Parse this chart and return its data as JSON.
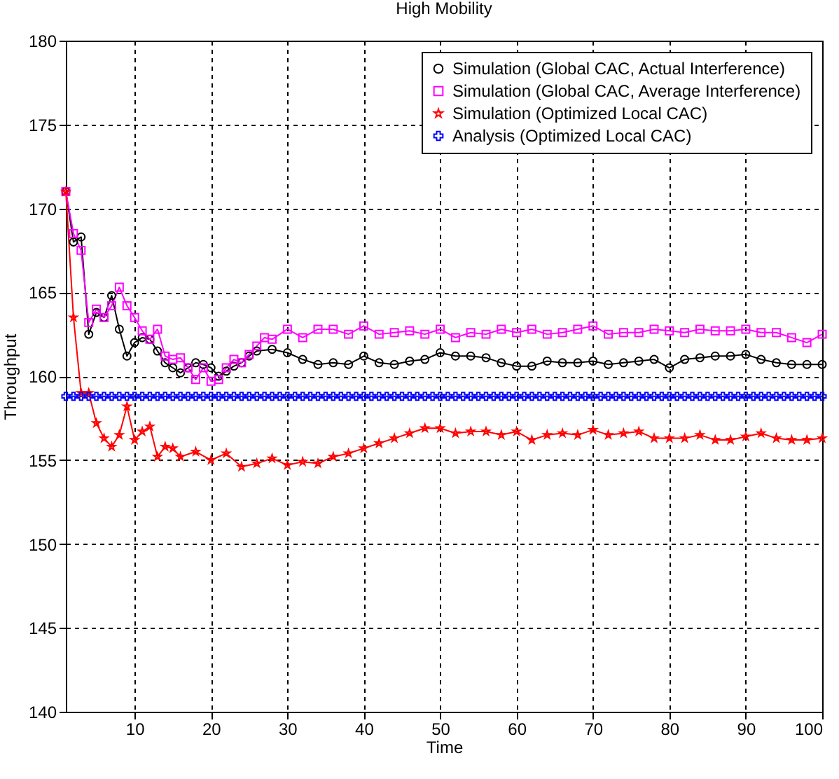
{
  "chart_data": {
    "type": "line",
    "title": "High Mobility",
    "xlabel": "Time",
    "ylabel": "Throughput",
    "xlim": [
      1,
      100
    ],
    "xticks": [
      10,
      20,
      30,
      40,
      50,
      60,
      70,
      80,
      90,
      100
    ],
    "ylim": [
      140,
      180
    ],
    "yticks": [
      140,
      145,
      150,
      155,
      160,
      165,
      170,
      175,
      180
    ],
    "grid": true,
    "legend": "top right",
    "line_style": "solid",
    "series": [
      {
        "name": "Simulation (Global CAC, Actual Interference)",
        "color": "#000000",
        "marker": "circle",
        "x": [
          1,
          2,
          3,
          4,
          5,
          6,
          7,
          8,
          9,
          10,
          11,
          12,
          13,
          14,
          15,
          16,
          17,
          18,
          19,
          20,
          21,
          22,
          23,
          24,
          25,
          26,
          28,
          30,
          32,
          34,
          36,
          38,
          40,
          42,
          44,
          46,
          48,
          50,
          52,
          54,
          56,
          58,
          60,
          62,
          64,
          66,
          68,
          70,
          72,
          74,
          76,
          78,
          80,
          82,
          84,
          86,
          88,
          90,
          92,
          94,
          96,
          98,
          100
        ],
        "values": [
          171,
          168,
          168.3,
          162.5,
          163.8,
          163.5,
          164.8,
          162.8,
          161.2,
          162,
          162.3,
          162.2,
          161.5,
          160.8,
          160.5,
          160.2,
          160.5,
          160.8,
          160.7,
          160.5,
          160,
          160.3,
          160.6,
          160.8,
          161.2,
          161.5,
          161.6,
          161.4,
          161,
          160.7,
          160.8,
          160.7,
          161.2,
          160.8,
          160.7,
          160.9,
          161,
          161.4,
          161.2,
          161.2,
          161.1,
          160.8,
          160.6,
          160.6,
          160.9,
          160.8,
          160.8,
          160.9,
          160.7,
          160.8,
          160.9,
          161,
          160.5,
          161,
          161.1,
          161.2,
          161.2,
          161.3,
          161,
          160.8,
          160.7,
          160.7,
          160.7
        ]
      },
      {
        "name": "Simulation (Global CAC, Average Interference)",
        "color": "#ff00ff",
        "marker": "square",
        "x": [
          1,
          2,
          3,
          4,
          5,
          6,
          7,
          8,
          9,
          10,
          11,
          12,
          13,
          14,
          15,
          16,
          17,
          18,
          19,
          20,
          21,
          22,
          23,
          24,
          25,
          26,
          27,
          28,
          30,
          32,
          34,
          36,
          38,
          40,
          42,
          44,
          46,
          48,
          50,
          52,
          54,
          56,
          58,
          60,
          62,
          64,
          66,
          68,
          70,
          72,
          74,
          76,
          78,
          80,
          82,
          84,
          86,
          88,
          90,
          92,
          94,
          96,
          98,
          100
        ],
        "values": [
          171,
          168.5,
          167.5,
          163.2,
          164,
          163.5,
          164.2,
          165.3,
          164.2,
          163.5,
          162.7,
          162.2,
          162.8,
          161.2,
          161,
          161.1,
          160.5,
          159.8,
          160.5,
          159.7,
          159.8,
          160.5,
          161,
          160.8,
          161.3,
          161.8,
          162.3,
          162.2,
          162.8,
          162.3,
          162.8,
          162.8,
          162.5,
          163,
          162.5,
          162.6,
          162.7,
          162.5,
          162.8,
          162.3,
          162.6,
          162.5,
          162.8,
          162.6,
          162.8,
          162.5,
          162.6,
          162.8,
          163,
          162.5,
          162.6,
          162.6,
          162.8,
          162.7,
          162.6,
          162.8,
          162.7,
          162.7,
          162.8,
          162.6,
          162.6,
          162.3,
          162,
          162.5
        ]
      },
      {
        "name": "Simulation (Optimized Local CAC)",
        "color": "#ff0000",
        "marker": "star",
        "x": [
          1,
          2,
          3,
          4,
          5,
          6,
          7,
          8,
          9,
          10,
          11,
          12,
          13,
          14,
          15,
          16,
          18,
          20,
          22,
          24,
          26,
          28,
          30,
          32,
          34,
          36,
          38,
          40,
          42,
          44,
          46,
          48,
          50,
          52,
          54,
          56,
          58,
          60,
          62,
          64,
          66,
          68,
          70,
          72,
          74,
          76,
          78,
          80,
          82,
          84,
          86,
          88,
          90,
          92,
          94,
          96,
          98,
          100
        ],
        "values": [
          171,
          163.5,
          159,
          159,
          157.2,
          156.3,
          155.8,
          156.5,
          158.2,
          156.2,
          156.7,
          157,
          155.2,
          155.8,
          155.7,
          155.2,
          155.5,
          155,
          155.4,
          154.6,
          154.8,
          155.1,
          154.7,
          154.9,
          154.8,
          155.2,
          155.4,
          155.7,
          156,
          156.3,
          156.6,
          156.9,
          156.9,
          156.6,
          156.7,
          156.7,
          156.5,
          156.7,
          156.2,
          156.5,
          156.6,
          156.5,
          156.8,
          156.5,
          156.6,
          156.7,
          156.3,
          156.3,
          156.3,
          156.5,
          156.2,
          156.2,
          156.4,
          156.6,
          156.3,
          156.2,
          156.2,
          156.3
        ]
      },
      {
        "name": "Analysis (Optimized Local CAC)",
        "color": "#0000ff",
        "marker": "cross",
        "x": [
          1,
          2,
          3,
          4,
          5,
          6,
          7,
          8,
          9,
          10,
          11,
          12,
          13,
          14,
          15,
          16,
          17,
          18,
          19,
          20,
          21,
          22,
          23,
          24,
          25,
          26,
          27,
          28,
          29,
          30,
          31,
          32,
          33,
          34,
          35,
          36,
          37,
          38,
          39,
          40,
          41,
          42,
          43,
          44,
          45,
          46,
          47,
          48,
          49,
          50,
          51,
          52,
          53,
          54,
          55,
          56,
          57,
          58,
          59,
          60,
          61,
          62,
          63,
          64,
          65,
          66,
          67,
          68,
          69,
          70,
          71,
          72,
          73,
          74,
          75,
          76,
          77,
          78,
          79,
          80,
          81,
          82,
          83,
          84,
          85,
          86,
          87,
          88,
          89,
          90,
          91,
          92,
          93,
          94,
          95,
          96,
          97,
          98,
          99,
          100
        ],
        "values": [
          158.8,
          158.8,
          158.8,
          158.8,
          158.8,
          158.8,
          158.8,
          158.8,
          158.8,
          158.8,
          158.8,
          158.8,
          158.8,
          158.8,
          158.8,
          158.8,
          158.8,
          158.8,
          158.8,
          158.8,
          158.8,
          158.8,
          158.8,
          158.8,
          158.8,
          158.8,
          158.8,
          158.8,
          158.8,
          158.8,
          158.8,
          158.8,
          158.8,
          158.8,
          158.8,
          158.8,
          158.8,
          158.8,
          158.8,
          158.8,
          158.8,
          158.8,
          158.8,
          158.8,
          158.8,
          158.8,
          158.8,
          158.8,
          158.8,
          158.8,
          158.8,
          158.8,
          158.8,
          158.8,
          158.8,
          158.8,
          158.8,
          158.8,
          158.8,
          158.8,
          158.8,
          158.8,
          158.8,
          158.8,
          158.8,
          158.8,
          158.8,
          158.8,
          158.8,
          158.8,
          158.8,
          158.8,
          158.8,
          158.8,
          158.8,
          158.8,
          158.8,
          158.8,
          158.8,
          158.8,
          158.8,
          158.8,
          158.8,
          158.8,
          158.8,
          158.8,
          158.8,
          158.8,
          158.8,
          158.8,
          158.8,
          158.8,
          158.8,
          158.8,
          158.8,
          158.8,
          158.8,
          158.8,
          158.8,
          158.8
        ]
      }
    ]
  }
}
